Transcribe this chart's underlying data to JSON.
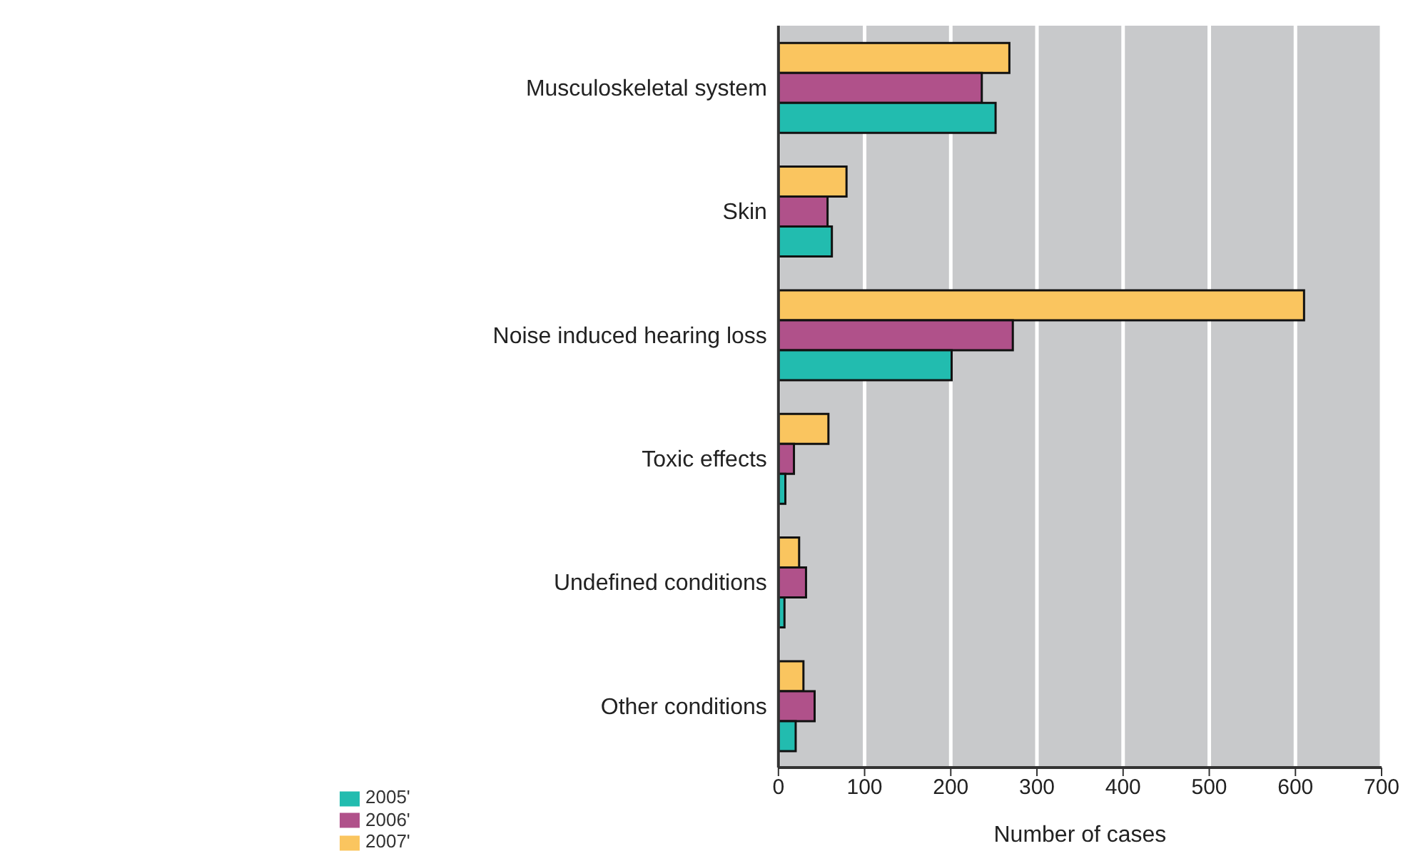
{
  "chart_data": {
    "type": "bar",
    "orientation": "horizontal",
    "xlabel": "Number of cases",
    "categories": [
      "Musculoskeletal system",
      "Skin",
      "Noise induced hearing loss",
      "Toxic effects",
      "Undefined conditions",
      "Other conditions"
    ],
    "series": [
      {
        "name": "2007'",
        "color": "#fac55f",
        "values": [
          268,
          79,
          610,
          58,
          24,
          29
        ]
      },
      {
        "name": "2006'",
        "color": "#b0518a",
        "values": [
          236,
          57,
          272,
          18,
          32,
          42
        ]
      },
      {
        "name": "2005'",
        "color": "#22bcaf",
        "values": [
          252,
          62,
          201,
          8,
          7,
          20
        ]
      }
    ],
    "xlim": [
      0,
      700
    ],
    "xticks": [
      0,
      100,
      200,
      300,
      400,
      500,
      600,
      700
    ],
    "grid": "x",
    "legend": "bottom left"
  }
}
